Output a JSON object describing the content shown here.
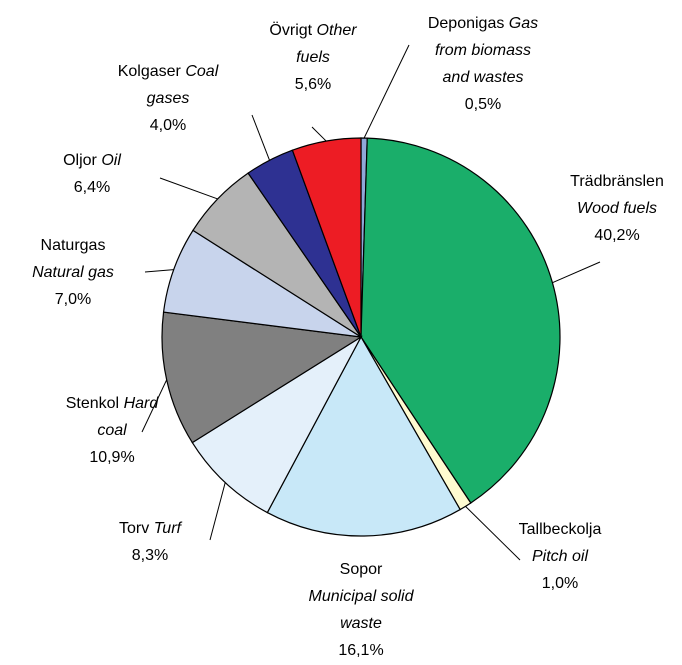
{
  "chart_data": {
    "type": "pie",
    "categories": [
      {
        "name": "Deponigas",
        "translation": "Gas from biomass and wastes"
      },
      {
        "name": "Trädbränslen",
        "translation": "Wood fuels"
      },
      {
        "name": "Tallbeckolja",
        "translation": "Pitch oil"
      },
      {
        "name": "Sopor",
        "translation": "Municipal solid waste"
      },
      {
        "name": "Torv",
        "translation": "Turf"
      },
      {
        "name": "Stenkol",
        "translation": "Hard coal"
      },
      {
        "name": "Naturgas",
        "translation": "Natural gas"
      },
      {
        "name": "Oljor",
        "translation": "Oil"
      },
      {
        "name": "Kolgaser",
        "translation": "Coal gases"
      },
      {
        "name": "Övrigt",
        "translation": "Other fuels"
      }
    ],
    "values": [
      0.5,
      40.2,
      1.0,
      16.1,
      8.3,
      10.9,
      7.0,
      6.4,
      4.0,
      5.6
    ],
    "value_labels": [
      "0,5%",
      "40,2%",
      "1,0%",
      "16,1%",
      "8,3%",
      "10,9%",
      "7,0%",
      "6,4%",
      "4,0%",
      "5,6%"
    ],
    "colors": [
      "#8fa8d8",
      "#1aae6a",
      "#fffbd0",
      "#c8e8f8",
      "#e4f0fa",
      "#808080",
      "#c8d4ec",
      "#b4b4b4",
      "#2e3192",
      "#ed1c24"
    ]
  }
}
